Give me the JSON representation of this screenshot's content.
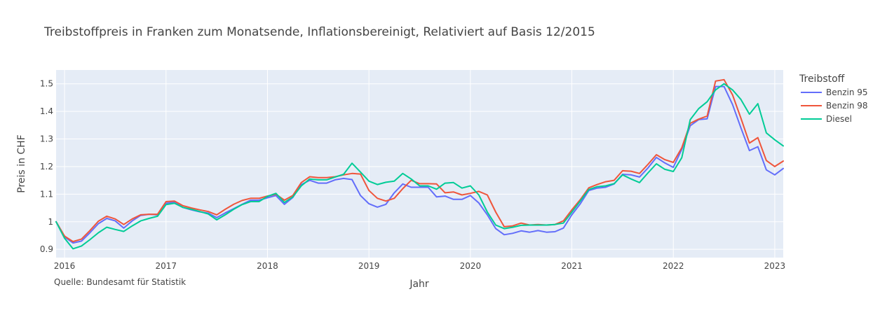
{
  "chart_data": {
    "type": "line",
    "title": "Treibstoffpreis in Franken zum Monatsende, Inflationsbereinigt, Relativiert auf Basis 12/2015",
    "xlabel": "Jahr",
    "ylabel": "Preis in CHF",
    "xlim": [
      "2015-12",
      "2023-02"
    ],
    "ylim": [
      0.87,
      1.55
    ],
    "x_ticks": [
      "2016",
      "2017",
      "2018",
      "2019",
      "2020",
      "2021",
      "2022",
      "2023"
    ],
    "y_ticks": [
      0.9,
      1.0,
      1.1,
      1.2,
      1.3,
      1.4,
      1.5
    ],
    "y_tick_labels": [
      "0.9",
      "1",
      "1.1",
      "1.2",
      "1.3",
      "1.4",
      "1.5"
    ],
    "grid": true,
    "legend_title": "Treibstoff",
    "legend_position": "right",
    "source_note": "Quelle: Bundesamt für Statistik",
    "x": [
      "2015-12",
      "2016-01",
      "2016-02",
      "2016-03",
      "2016-04",
      "2016-05",
      "2016-06",
      "2016-07",
      "2016-08",
      "2016-09",
      "2016-10",
      "2016-11",
      "2016-12",
      "2017-01",
      "2017-02",
      "2017-03",
      "2017-04",
      "2017-05",
      "2017-06",
      "2017-07",
      "2017-08",
      "2017-09",
      "2017-10",
      "2017-11",
      "2017-12",
      "2018-01",
      "2018-02",
      "2018-03",
      "2018-04",
      "2018-05",
      "2018-06",
      "2018-07",
      "2018-08",
      "2018-09",
      "2018-10",
      "2018-11",
      "2018-12",
      "2019-01",
      "2019-02",
      "2019-03",
      "2019-04",
      "2019-05",
      "2019-06",
      "2019-07",
      "2019-08",
      "2019-09",
      "2019-10",
      "2019-11",
      "2019-12",
      "2020-01",
      "2020-02",
      "2020-03",
      "2020-04",
      "2020-05",
      "2020-06",
      "2020-07",
      "2020-08",
      "2020-09",
      "2020-10",
      "2020-11",
      "2020-12",
      "2021-01",
      "2021-02",
      "2021-03",
      "2021-04",
      "2021-05",
      "2021-06",
      "2021-07",
      "2021-08",
      "2021-09",
      "2021-10",
      "2021-11",
      "2021-12",
      "2022-01",
      "2022-02",
      "2022-03",
      "2022-04",
      "2022-05",
      "2022-06",
      "2022-07",
      "2022-08",
      "2022-09",
      "2022-10",
      "2022-11",
      "2022-12",
      "2023-01",
      "2023-02"
    ],
    "series": [
      {
        "name": "Benzin 95",
        "color": "#636efa",
        "values": [
          1.0,
          0.945,
          0.923,
          0.93,
          0.96,
          0.993,
          1.012,
          1.003,
          0.977,
          1.003,
          1.023,
          1.027,
          1.025,
          1.067,
          1.071,
          1.052,
          1.043,
          1.036,
          1.031,
          1.015,
          1.032,
          1.047,
          1.063,
          1.078,
          1.078,
          1.087,
          1.095,
          1.063,
          1.088,
          1.135,
          1.15,
          1.14,
          1.14,
          1.152,
          1.157,
          1.153,
          1.095,
          1.065,
          1.053,
          1.063,
          1.105,
          1.137,
          1.125,
          1.125,
          1.125,
          1.09,
          1.093,
          1.081,
          1.081,
          1.095,
          1.068,
          1.025,
          0.975,
          0.953,
          0.958,
          0.967,
          0.962,
          0.968,
          0.962,
          0.964,
          0.977,
          1.025,
          1.065,
          1.113,
          1.122,
          1.125,
          1.137,
          1.172,
          1.17,
          1.162,
          1.195,
          1.233,
          1.213,
          1.197,
          1.262,
          1.348,
          1.37,
          1.373,
          1.49,
          1.49,
          1.425,
          1.34,
          1.258,
          1.272,
          1.188,
          1.17,
          1.193
        ]
      },
      {
        "name": "Benzin 98",
        "color": "#ef553b",
        "values": [
          1.0,
          0.948,
          0.928,
          0.937,
          0.968,
          1.002,
          1.02,
          1.01,
          0.99,
          1.01,
          1.025,
          1.027,
          1.027,
          1.073,
          1.075,
          1.058,
          1.05,
          1.043,
          1.037,
          1.025,
          1.045,
          1.063,
          1.077,
          1.085,
          1.085,
          1.093,
          1.1,
          1.078,
          1.095,
          1.142,
          1.163,
          1.16,
          1.16,
          1.163,
          1.17,
          1.175,
          1.173,
          1.113,
          1.085,
          1.075,
          1.085,
          1.12,
          1.15,
          1.138,
          1.138,
          1.137,
          1.105,
          1.108,
          1.097,
          1.103,
          1.11,
          1.097,
          1.035,
          0.982,
          0.985,
          0.995,
          0.988,
          0.99,
          0.988,
          0.99,
          1.003,
          1.043,
          1.08,
          1.123,
          1.135,
          1.145,
          1.15,
          1.185,
          1.183,
          1.175,
          1.208,
          1.243,
          1.225,
          1.215,
          1.268,
          1.357,
          1.372,
          1.383,
          1.51,
          1.515,
          1.46,
          1.375,
          1.285,
          1.305,
          1.222,
          1.2,
          1.22
        ]
      },
      {
        "name": "Diesel",
        "color": "#00cc96",
        "values": [
          1.0,
          0.94,
          0.902,
          0.912,
          0.935,
          0.96,
          0.98,
          0.972,
          0.965,
          0.985,
          1.003,
          1.012,
          1.02,
          1.062,
          1.067,
          1.052,
          1.045,
          1.037,
          1.028,
          1.007,
          1.025,
          1.045,
          1.062,
          1.073,
          1.073,
          1.092,
          1.103,
          1.07,
          1.09,
          1.13,
          1.155,
          1.152,
          1.152,
          1.162,
          1.172,
          1.212,
          1.18,
          1.147,
          1.135,
          1.143,
          1.147,
          1.175,
          1.155,
          1.13,
          1.13,
          1.118,
          1.14,
          1.142,
          1.122,
          1.13,
          1.097,
          1.035,
          0.988,
          0.975,
          0.98,
          0.987,
          0.988,
          0.988,
          0.988,
          0.99,
          0.995,
          1.035,
          1.075,
          1.117,
          1.127,
          1.13,
          1.138,
          1.17,
          1.155,
          1.142,
          1.177,
          1.21,
          1.19,
          1.182,
          1.232,
          1.37,
          1.41,
          1.435,
          1.478,
          1.5,
          1.478,
          1.443,
          1.39,
          1.428,
          1.322,
          1.297,
          1.275
        ]
      }
    ]
  }
}
